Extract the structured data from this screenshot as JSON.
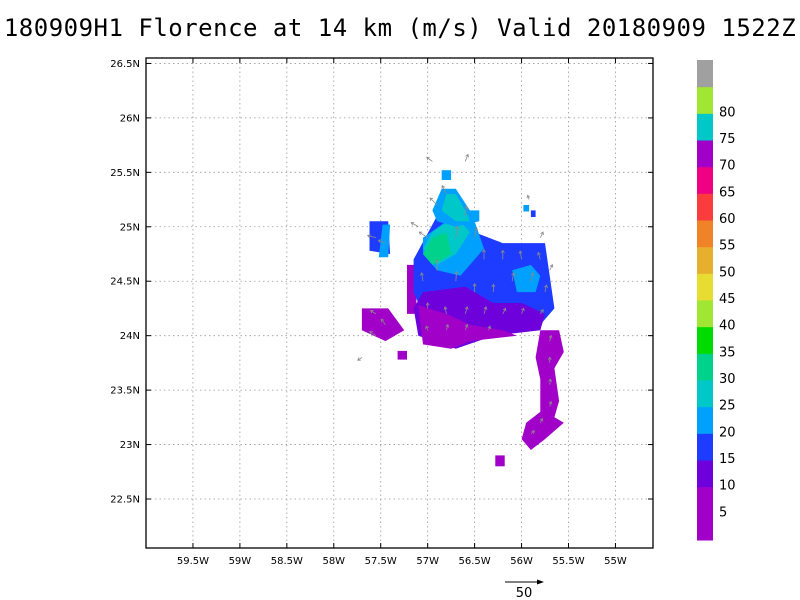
{
  "title": "180909H1 Florence at 14 km (m/s) Valid 20180909  1522Z",
  "map": {
    "lon_range": [
      -60.0,
      -54.6
    ],
    "lat_range": [
      22.05,
      26.55
    ],
    "x_ticks": [
      {
        "value": -59.5,
        "label": "59.5W"
      },
      {
        "value": -59.0,
        "label": "59W"
      },
      {
        "value": -58.5,
        "label": "58.5W"
      },
      {
        "value": -58.0,
        "label": "58W"
      },
      {
        "value": -57.5,
        "label": "57.5W"
      },
      {
        "value": -57.0,
        "label": "57W"
      },
      {
        "value": -56.5,
        "label": "56.5W"
      },
      {
        "value": -56.0,
        "label": "56W"
      },
      {
        "value": -55.5,
        "label": "55.5W"
      },
      {
        "value": -55.0,
        "label": "55W"
      }
    ],
    "y_ticks": [
      {
        "value": 22.5,
        "label": "22.5N"
      },
      {
        "value": 23.0,
        "label": "23N"
      },
      {
        "value": 23.5,
        "label": "23.5N"
      },
      {
        "value": 24.0,
        "label": "24N"
      },
      {
        "value": 24.5,
        "label": "24.5N"
      },
      {
        "value": 25.0,
        "label": "25N"
      },
      {
        "value": 25.5,
        "label": "25.5N"
      },
      {
        "value": 26.0,
        "label": "26N"
      },
      {
        "value": 26.5,
        "label": "26.5N"
      }
    ],
    "grid": "dotted"
  },
  "colorbar": {
    "levels": [
      {
        "label": "",
        "color": "#a000c8"
      },
      {
        "label": "5",
        "color": "#a000c8"
      },
      {
        "label": "10",
        "color": "#6e00dc"
      },
      {
        "label": "15",
        "color": "#1e3cff"
      },
      {
        "label": "20",
        "color": "#00a0ff"
      },
      {
        "label": "25",
        "color": "#00c8c8"
      },
      {
        "label": "30",
        "color": "#00d28c"
      },
      {
        "label": "35",
        "color": "#00dc00"
      },
      {
        "label": "40",
        "color": "#a0e632"
      },
      {
        "label": "45",
        "color": "#e6dc32"
      },
      {
        "label": "50",
        "color": "#e6af2d"
      },
      {
        "label": "55",
        "color": "#f08228"
      },
      {
        "label": "60",
        "color": "#fa3c3c"
      },
      {
        "label": "65",
        "color": "#f00082"
      },
      {
        "label": "70",
        "color": "#a000c8"
      },
      {
        "label": "75",
        "color": "#00c8c8"
      },
      {
        "label": "80",
        "color": "#a0e632"
      },
      {
        "label": "",
        "color": "#a0a0a0"
      }
    ]
  },
  "wind_field": {
    "units": "m/s",
    "colored_regions": [
      {
        "speed": 15,
        "polygon": [
          [
            -57.62,
            25.05
          ],
          [
            -57.42,
            25.05
          ],
          [
            -57.4,
            24.75
          ],
          [
            -57.62,
            24.78
          ]
        ]
      },
      {
        "speed": 20,
        "polygon": [
          [
            -57.48,
            25.02
          ],
          [
            -57.4,
            25.02
          ],
          [
            -57.42,
            24.72
          ],
          [
            -57.52,
            24.72
          ]
        ]
      },
      {
        "speed": 5,
        "polygon": [
          [
            -57.7,
            24.25
          ],
          [
            -57.42,
            24.25
          ],
          [
            -57.25,
            24.05
          ],
          [
            -57.45,
            23.95
          ],
          [
            -57.7,
            24.05
          ]
        ]
      },
      {
        "speed": 5,
        "polygon": [
          [
            -57.32,
            23.86
          ],
          [
            -57.22,
            23.86
          ],
          [
            -57.22,
            23.78
          ],
          [
            -57.32,
            23.78
          ]
        ]
      },
      {
        "speed": 5,
        "polygon": [
          [
            -57.22,
            24.65
          ],
          [
            -57.12,
            24.65
          ],
          [
            -57.12,
            24.2
          ],
          [
            -57.22,
            24.2
          ]
        ]
      },
      {
        "speed": 15,
        "polygon": [
          [
            -57.15,
            24.7
          ],
          [
            -56.9,
            25.1
          ],
          [
            -56.5,
            24.95
          ],
          [
            -56.2,
            24.85
          ],
          [
            -55.75,
            24.85
          ],
          [
            -55.7,
            24.55
          ],
          [
            -55.65,
            24.25
          ],
          [
            -55.8,
            24.1
          ],
          [
            -56.2,
            24.0
          ],
          [
            -56.7,
            24.0
          ],
          [
            -57.05,
            24.2
          ],
          [
            -57.15,
            24.4
          ]
        ]
      },
      {
        "speed": 10,
        "polygon": [
          [
            -57.05,
            24.4
          ],
          [
            -56.6,
            24.45
          ],
          [
            -56.3,
            24.3
          ],
          [
            -56.0,
            24.3
          ],
          [
            -55.75,
            24.2
          ],
          [
            -55.8,
            24.05
          ],
          [
            -56.3,
            24.0
          ],
          [
            -56.7,
            23.88
          ],
          [
            -57.1,
            24.0
          ],
          [
            -57.15,
            24.25
          ]
        ]
      },
      {
        "speed": 5,
        "polygon": [
          [
            -57.1,
            24.28
          ],
          [
            -56.8,
            24.2
          ],
          [
            -56.55,
            24.1
          ],
          [
            -56.2,
            24.05
          ],
          [
            -56.05,
            24.0
          ],
          [
            -56.55,
            23.95
          ],
          [
            -56.75,
            23.88
          ],
          [
            -57.05,
            23.92
          ]
        ]
      },
      {
        "speed": 20,
        "polygon": [
          [
            -57.05,
            24.9
          ],
          [
            -56.8,
            25.05
          ],
          [
            -56.5,
            25.05
          ],
          [
            -56.4,
            24.8
          ],
          [
            -56.65,
            24.55
          ],
          [
            -56.9,
            24.6
          ],
          [
            -57.05,
            24.75
          ]
        ]
      },
      {
        "speed": 25,
        "polygon": [
          [
            -56.95,
            24.95
          ],
          [
            -56.7,
            25.1
          ],
          [
            -56.55,
            24.95
          ],
          [
            -56.7,
            24.75
          ],
          [
            -56.9,
            24.65
          ],
          [
            -57.05,
            24.8
          ]
        ]
      },
      {
        "speed": 30,
        "polygon": [
          [
            -56.95,
            24.9
          ],
          [
            -56.8,
            24.95
          ],
          [
            -56.75,
            24.75
          ],
          [
            -56.95,
            24.65
          ],
          [
            -57.05,
            24.75
          ]
        ]
      },
      {
        "speed": 20,
        "polygon": [
          [
            -56.85,
            25.35
          ],
          [
            -56.7,
            25.35
          ],
          [
            -56.55,
            25.15
          ],
          [
            -56.45,
            25.15
          ],
          [
            -56.45,
            25.05
          ],
          [
            -56.7,
            25.0
          ],
          [
            -56.9,
            25.05
          ],
          [
            -56.95,
            25.15
          ]
        ]
      },
      {
        "speed": 25,
        "polygon": [
          [
            -56.8,
            25.3
          ],
          [
            -56.7,
            25.3
          ],
          [
            -56.6,
            25.15
          ],
          [
            -56.55,
            25.05
          ],
          [
            -56.7,
            25.05
          ],
          [
            -56.85,
            25.15
          ]
        ]
      },
      {
        "speed": 20,
        "polygon": [
          [
            -56.85,
            25.52
          ],
          [
            -56.75,
            25.52
          ],
          [
            -56.75,
            25.43
          ],
          [
            -56.85,
            25.43
          ]
        ]
      },
      {
        "speed": 20,
        "polygon": [
          [
            -56.1,
            24.6
          ],
          [
            -55.9,
            24.65
          ],
          [
            -55.8,
            24.55
          ],
          [
            -55.85,
            24.4
          ],
          [
            -56.05,
            24.4
          ]
        ]
      },
      {
        "speed": 20,
        "polygon": [
          [
            -55.98,
            25.2
          ],
          [
            -55.92,
            25.2
          ],
          [
            -55.92,
            25.14
          ],
          [
            -55.98,
            25.14
          ]
        ]
      },
      {
        "speed": 15,
        "polygon": [
          [
            -55.9,
            25.15
          ],
          [
            -55.85,
            25.15
          ],
          [
            -55.85,
            25.09
          ],
          [
            -55.9,
            25.09
          ]
        ]
      },
      {
        "speed": 5,
        "polygon": [
          [
            -55.8,
            24.05
          ],
          [
            -55.6,
            24.05
          ],
          [
            -55.55,
            23.85
          ],
          [
            -55.65,
            23.7
          ],
          [
            -55.6,
            23.4
          ],
          [
            -55.65,
            23.25
          ],
          [
            -55.55,
            23.2
          ],
          [
            -55.75,
            23.05
          ],
          [
            -55.9,
            22.95
          ],
          [
            -56.0,
            23.05
          ],
          [
            -55.95,
            23.2
          ],
          [
            -55.8,
            23.3
          ],
          [
            -55.8,
            23.6
          ],
          [
            -55.85,
            23.8
          ]
        ]
      },
      {
        "speed": 5,
        "polygon": [
          [
            -56.28,
            22.9
          ],
          [
            -56.18,
            22.9
          ],
          [
            -56.18,
            22.8
          ],
          [
            -56.28,
            22.8
          ]
        ]
      }
    ],
    "vectors": [
      {
        "lon": -57.55,
        "lat": 24.9,
        "u": -12,
        "v": 3
      },
      {
        "lon": -57.45,
        "lat": 24.85,
        "u": -10,
        "v": 4
      },
      {
        "lon": -57.55,
        "lat": 24.2,
        "u": -8,
        "v": 5
      },
      {
        "lon": -57.45,
        "lat": 24.1,
        "u": -6,
        "v": 8
      },
      {
        "lon": -57.55,
        "lat": 24.0,
        "u": -9,
        "v": 6
      },
      {
        "lon": -57.7,
        "lat": 23.8,
        "u": -6,
        "v": -4
      },
      {
        "lon": -57.1,
        "lat": 25.0,
        "u": -10,
        "v": 6
      },
      {
        "lon": -57.0,
        "lat": 24.9,
        "u": -12,
        "v": 8
      },
      {
        "lon": -56.9,
        "lat": 25.2,
        "u": -10,
        "v": 10
      },
      {
        "lon": -56.8,
        "lat": 25.3,
        "u": -6,
        "v": 12
      },
      {
        "lon": -56.95,
        "lat": 25.6,
        "u": -8,
        "v": 6
      },
      {
        "lon": -56.6,
        "lat": 25.6,
        "u": 4,
        "v": 10
      },
      {
        "lon": -56.6,
        "lat": 25.1,
        "u": 2,
        "v": 14
      },
      {
        "lon": -56.7,
        "lat": 24.9,
        "u": 2,
        "v": 16
      },
      {
        "lon": -56.5,
        "lat": 24.9,
        "u": 3,
        "v": 14
      },
      {
        "lon": -56.4,
        "lat": 24.7,
        "u": 0,
        "v": 14
      },
      {
        "lon": -56.2,
        "lat": 24.7,
        "u": 0,
        "v": 13
      },
      {
        "lon": -56.0,
        "lat": 24.7,
        "u": -2,
        "v": 12
      },
      {
        "lon": -55.8,
        "lat": 24.7,
        "u": -3,
        "v": 10
      },
      {
        "lon": -55.8,
        "lat": 24.9,
        "u": 4,
        "v": 8
      },
      {
        "lon": -56.9,
        "lat": 24.6,
        "u": 0,
        "v": 15
      },
      {
        "lon": -56.7,
        "lat": 24.5,
        "u": 1,
        "v": 14
      },
      {
        "lon": -57.05,
        "lat": 24.5,
        "u": -2,
        "v": 12
      },
      {
        "lon": -56.5,
        "lat": 24.4,
        "u": 0,
        "v": 12
      },
      {
        "lon": -56.3,
        "lat": 24.4,
        "u": 0,
        "v": 11
      },
      {
        "lon": -56.1,
        "lat": 24.5,
        "u": 2,
        "v": 12
      },
      {
        "lon": -55.9,
        "lat": 24.5,
        "u": 3,
        "v": 12
      },
      {
        "lon": -55.75,
        "lat": 24.4,
        "u": 2,
        "v": 10
      },
      {
        "lon": -55.7,
        "lat": 24.6,
        "u": 4,
        "v": 8
      },
      {
        "lon": -57.0,
        "lat": 24.25,
        "u": 0,
        "v": 8
      },
      {
        "lon": -56.8,
        "lat": 24.2,
        "u": -2,
        "v": 10
      },
      {
        "lon": -56.6,
        "lat": 24.2,
        "u": 3,
        "v": 10
      },
      {
        "lon": -56.4,
        "lat": 24.2,
        "u": 3,
        "v": 10
      },
      {
        "lon": -56.2,
        "lat": 24.2,
        "u": 4,
        "v": 8
      },
      {
        "lon": -56.0,
        "lat": 24.2,
        "u": 3,
        "v": 8
      },
      {
        "lon": -55.8,
        "lat": 24.2,
        "u": 4,
        "v": 6
      },
      {
        "lon": -57.0,
        "lat": 24.05,
        "u": -2,
        "v": 6
      },
      {
        "lon": -56.8,
        "lat": 24.05,
        "u": 2,
        "v": 8
      },
      {
        "lon": -56.6,
        "lat": 24.05,
        "u": 3,
        "v": 8
      },
      {
        "lon": -56.35,
        "lat": 24.05,
        "u": 2,
        "v": 6
      },
      {
        "lon": -55.7,
        "lat": 23.95,
        "u": 2,
        "v": 8
      },
      {
        "lon": -55.7,
        "lat": 23.75,
        "u": 0,
        "v": 8
      },
      {
        "lon": -55.7,
        "lat": 23.55,
        "u": 1,
        "v": 8
      },
      {
        "lon": -55.7,
        "lat": 23.35,
        "u": 2,
        "v": 7
      },
      {
        "lon": -55.8,
        "lat": 23.2,
        "u": 3,
        "v": 6
      },
      {
        "lon": -55.9,
        "lat": 23.1,
        "u": 5,
        "v": 4
      },
      {
        "lon": -55.92,
        "lat": 25.25,
        "u": -2,
        "v": 6
      }
    ]
  },
  "reference_vector": {
    "label": "50",
    "u": 50,
    "v": 0
  }
}
